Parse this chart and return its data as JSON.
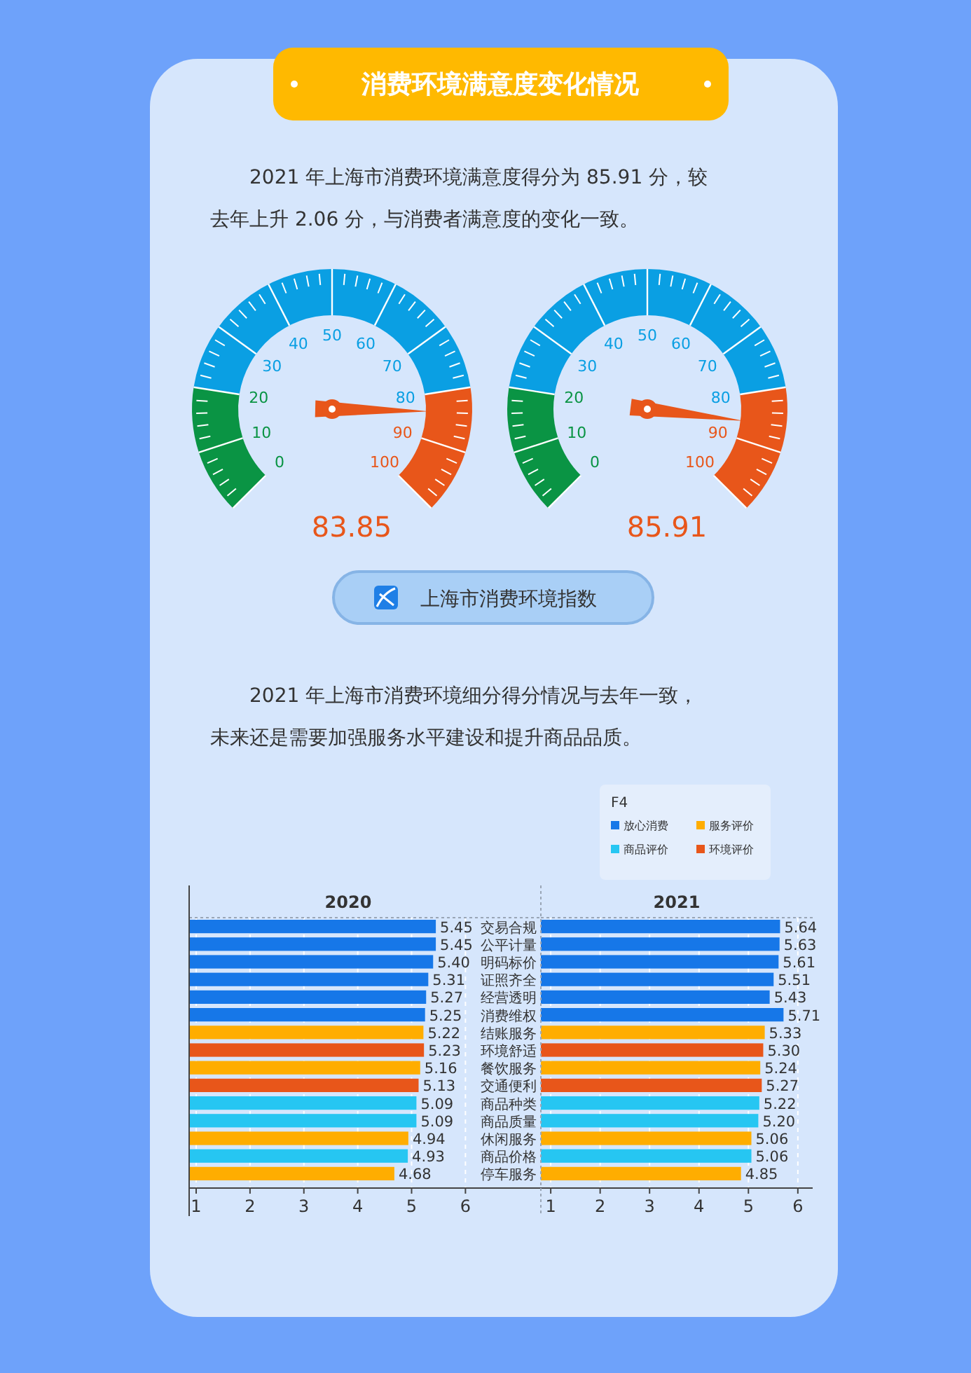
{
  "chart_data": [
    {
      "type": "other",
      "title": "消费环境满意度变化情况",
      "annotations": [
        "2021 年上海市消费环境满意度得分为 85.91 分，较去年上升 2.06 分，与消费者满意度的变化一致。"
      ]
    },
    {
      "type": "donut",
      "categories": [
        null,
        null,
        null
      ],
      "values": [
        20,
        60,
        20
      ],
      "colors": [
        "#0a9444",
        "#0a9fe3",
        "#e8561a"
      ],
      "annotations": [
        "0",
        "10",
        "20",
        "30",
        "40",
        "50",
        "60",
        "70",
        "80",
        "90",
        "100",
        "83.85"
      ]
    },
    {
      "type": "donut",
      "categories": [
        null,
        null,
        null
      ],
      "values": [
        20,
        60,
        20
      ],
      "colors": [
        "#0a9444",
        "#0a9fe3",
        "#e8561a"
      ],
      "annotations": [
        "0",
        "10",
        "20",
        "30",
        "40",
        "50",
        "60",
        "70",
        "80",
        "90",
        "100",
        "85.91"
      ]
    },
    {
      "type": "other",
      "title": "上海市消费环境指数",
      "annotations": [
        "2021 年上海市消费环境细分得分情况与去年一致，未来还是需要加强服务水平建设和提升商品品质。"
      ]
    },
    {
      "type": "bar",
      "orientation": "horizontal",
      "stacked": true,
      "title": "2020",
      "grid": "x",
      "xlim": [
        0.87,
        7.4
      ],
      "xticks": [
        1,
        2,
        3,
        4,
        5,
        6
      ],
      "categories": [
        "交易合规",
        "公平计量",
        "明码标价",
        "证照齐全",
        "经营透明",
        "消费维权",
        "结账服务",
        "环境舒适",
        "餐饮服务",
        "交通便利",
        "商品种类",
        "商品质量",
        "休闲服务",
        "商品价格",
        "停车服务"
      ],
      "series": [
        {
          "color": "#1677e8",
          "values": [
            5.45,
            5.45,
            5.4,
            5.31,
            5.27,
            5.25,
            null,
            null,
            null,
            null,
            null,
            null,
            null,
            null,
            null
          ],
          "value_labels": [
            "5.45",
            "5.45",
            "5.40",
            "5.31",
            "5.27",
            "5.25",
            null,
            null,
            null,
            null,
            null,
            null,
            null,
            null,
            null
          ]
        },
        {
          "color": "#ffad00",
          "values": [
            null,
            null,
            null,
            null,
            null,
            null,
            5.22,
            null,
            5.16,
            null,
            null,
            null,
            4.94,
            null,
            4.68
          ],
          "value_labels": [
            null,
            null,
            null,
            null,
            null,
            null,
            "5.22",
            null,
            "5.16",
            null,
            null,
            null,
            "4.94",
            null,
            "4.68"
          ]
        },
        {
          "color": "#26c6f2",
          "values": [
            null,
            null,
            null,
            null,
            null,
            null,
            null,
            null,
            null,
            null,
            5.09,
            5.09,
            null,
            4.93,
            null
          ],
          "value_labels": [
            null,
            null,
            null,
            null,
            null,
            null,
            null,
            null,
            null,
            null,
            "5.09",
            "5.09",
            null,
            "4.93",
            null
          ]
        },
        {
          "color": "#e8561a",
          "values": [
            null,
            null,
            null,
            null,
            null,
            null,
            null,
            5.23,
            null,
            5.13,
            null,
            null,
            null,
            null,
            null
          ],
          "value_labels": [
            null,
            null,
            null,
            null,
            null,
            null,
            null,
            "5.23",
            null,
            "5.13",
            null,
            null,
            null,
            null,
            null
          ]
        }
      ]
    },
    {
      "type": "bar",
      "orientation": "horizontal",
      "stacked": true,
      "title": "2021",
      "grid": "x",
      "xlim": [
        0.8,
        6.3
      ],
      "xticks": [
        1,
        2,
        3,
        4,
        5,
        6
      ],
      "legend": "top right",
      "legend_title": "F4",
      "categories": [
        null,
        null,
        null,
        null,
        null,
        null,
        null,
        null,
        null,
        null,
        null,
        null,
        null,
        null,
        null
      ],
      "series": [
        {
          "name": "放心消费",
          "color": "#1677e8",
          "values": [
            5.64,
            5.63,
            5.61,
            5.51,
            5.43,
            5.71,
            null,
            null,
            null,
            null,
            null,
            null,
            null,
            null,
            null
          ],
          "value_labels": [
            "5.64",
            "5.63",
            "5.61",
            "5.51",
            "5.43",
            "5.71",
            null,
            null,
            null,
            null,
            null,
            null,
            null,
            null,
            null
          ]
        },
        {
          "name": "服务评价",
          "color": "#ffad00",
          "values": [
            null,
            null,
            null,
            null,
            null,
            null,
            5.33,
            null,
            5.24,
            null,
            null,
            null,
            5.06,
            null,
            4.85
          ],
          "value_labels": [
            null,
            null,
            null,
            null,
            null,
            null,
            "5.33",
            null,
            "5.24",
            null,
            null,
            null,
            "5.06",
            null,
            "4.85"
          ]
        },
        {
          "name": "商品评价",
          "color": "#26c6f2",
          "values": [
            null,
            null,
            null,
            null,
            null,
            null,
            null,
            null,
            null,
            null,
            5.22,
            5.2,
            null,
            5.06,
            null
          ],
          "value_labels": [
            null,
            null,
            null,
            null,
            null,
            null,
            null,
            null,
            null,
            null,
            "5.22",
            "5.20",
            null,
            "5.06",
            null
          ]
        },
        {
          "name": "环境评价",
          "color": "#e8561a",
          "values": [
            null,
            null,
            null,
            null,
            null,
            null,
            null,
            5.3,
            null,
            5.27,
            null,
            null,
            null,
            null,
            null
          ],
          "value_labels": [
            null,
            null,
            null,
            null,
            null,
            null,
            null,
            "5.30",
            null,
            "5.27",
            null,
            null,
            null,
            null,
            null
          ]
        }
      ]
    }
  ]
}
